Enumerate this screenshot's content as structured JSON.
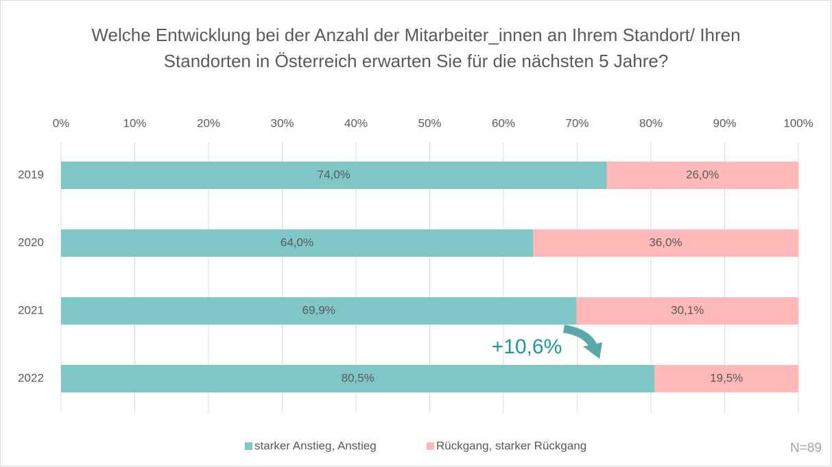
{
  "chart_data": {
    "type": "stacked-bar-horizontal",
    "title": "Welche Entwicklung bei der Anzahl der Mitarbeiter_innen an Ihrem Standort/ Ihren Standorten in Österreich erwarten Sie für die nächsten 5 Jahre?",
    "categories": [
      "2019",
      "2020",
      "2021",
      "2022"
    ],
    "series": [
      {
        "name": "starker Anstieg, Anstieg",
        "color": "#7fc7c7",
        "values": [
          74,
          64,
          69.9,
          80.5
        ],
        "value_labels": [
          "74,0%",
          "64,0%",
          "69,9%",
          "80,5%"
        ]
      },
      {
        "name": "Rückgang, starker Rückgang",
        "color": "#ffb9b9",
        "values": [
          26,
          36,
          30.1,
          19.5
        ],
        "value_labels": [
          "26,0%",
          "36,0%",
          "30,1%",
          "19,5%"
        ]
      }
    ],
    "xlim": [
      0,
      100
    ],
    "xticks": [
      {
        "value": 0,
        "label": "0%"
      },
      {
        "value": 10,
        "label": "10%"
      },
      {
        "value": 20,
        "label": "20%"
      },
      {
        "value": 30,
        "label": "30%"
      },
      {
        "value": 40,
        "label": "40%"
      },
      {
        "value": 50,
        "label": "50%"
      },
      {
        "value": 60,
        "label": "60%"
      },
      {
        "value": 70,
        "label": "70%"
      },
      {
        "value": 80,
        "label": "80%"
      },
      {
        "value": 90,
        "label": "90%"
      },
      {
        "value": 100,
        "label": "100%"
      }
    ],
    "grid": true,
    "legend": "bottom",
    "annotations": [
      "+10,6%",
      "N=89"
    ]
  }
}
